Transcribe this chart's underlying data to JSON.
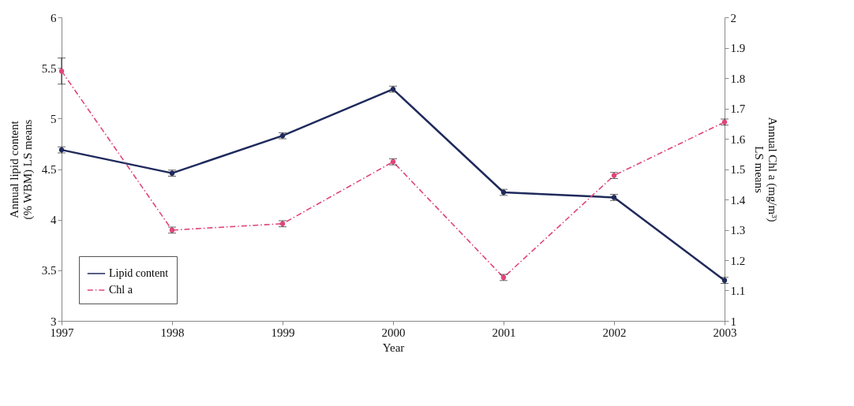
{
  "chart_data": {
    "type": "line",
    "xlabel": "Year",
    "ylabel": "Annual lipid content\n(% WBM) LS means",
    "y2label": "Annual Chl a (mg/m³)\nLS means",
    "x": [
      1997,
      1998,
      1999,
      2000,
      2001,
      2002,
      2003
    ],
    "xlim": [
      1997,
      2003
    ],
    "xticks": [
      1997,
      1998,
      1999,
      2000,
      2001,
      2002,
      2003
    ],
    "ylim": [
      3,
      6
    ],
    "yticks": [
      3,
      3.5,
      4,
      4.5,
      5,
      5.5,
      6
    ],
    "y2lim": [
      1,
      2
    ],
    "y2ticks": [
      1,
      1.1,
      1.2,
      1.3,
      1.4,
      1.5,
      1.6,
      1.7,
      1.8,
      1.9,
      2
    ],
    "grid": false,
    "legend": "bottom left",
    "marker": "circle",
    "series": [
      {
        "name": "Lipid content",
        "color": "#1f2a5c",
        "line_style": "solid",
        "values": [
          4.69,
          4.46,
          4.83,
          5.29,
          4.27,
          4.22,
          3.4
        ],
        "errors": [
          0.03,
          0.03,
          0.03,
          0.03,
          0.03,
          0.03,
          0.03
        ]
      },
      {
        "name": "Chl a",
        "color": "#e0457a",
        "line_style": "dashed",
        "axis": "y2",
        "values": [
          1.823,
          1.299,
          1.32,
          1.524,
          1.143,
          1.479,
          1.655
        ],
        "errors": [
          0.043,
          0.01,
          0.01,
          0.01,
          0.01,
          0.01,
          0.01
        ]
      }
    ]
  }
}
